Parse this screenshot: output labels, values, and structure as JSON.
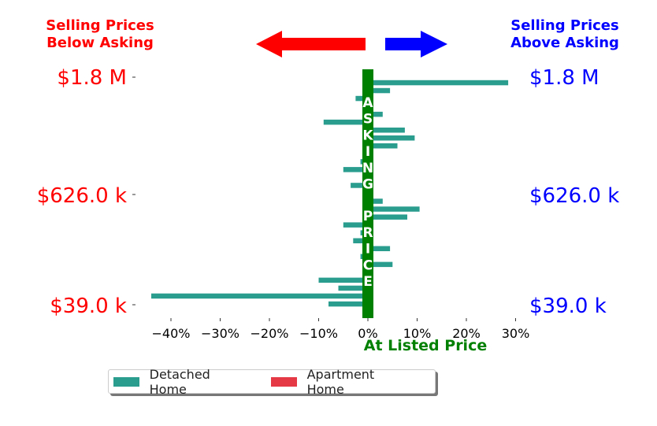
{
  "header": {
    "below_label_line1": "Selling Prices",
    "below_label_line2": "Below Asking",
    "above_label_line1": "Selling Prices",
    "above_label_line2": "Above Asking"
  },
  "colors": {
    "below": "#ff0000",
    "above": "#0000ff",
    "asking_bar": "#008000",
    "detached": "#2a9d8f",
    "apartment": "#e63946"
  },
  "asking_label": "ASKING PRICE",
  "listed_price_label": "At Listed Price",
  "legend": [
    {
      "name": "Detached Home",
      "color": "#2a9d8f"
    },
    {
      "name": "Apartment Home",
      "color": "#e63946"
    }
  ],
  "chart_data": {
    "type": "bar",
    "orientation": "horizontal",
    "xlabel": "At Listed Price",
    "x_ticks": [
      "−40%",
      "−30%",
      "−20%",
      "−10%",
      "0%",
      "10%",
      "20%",
      "30%"
    ],
    "x_tick_values": [
      -40,
      -30,
      -20,
      -10,
      0,
      10,
      20,
      30
    ],
    "xlim": [
      -45,
      31
    ],
    "y_ticks": [
      "$1.8 M",
      "$626.0 k",
      "$39.0 k"
    ],
    "series": [
      {
        "name": "Detached Home",
        "values": [
          28.5,
          4.5,
          -2.5,
          0,
          3.0,
          -9.0,
          7.5,
          9.5,
          6.0,
          0,
          -1.5,
          -5.0,
          0,
          -3.5,
          0,
          3.0,
          10.5,
          8.0,
          -5.0,
          -1.5,
          -3.0,
          4.5,
          -1.5,
          5.0,
          0,
          -10.0,
          -6.0,
          -44.0,
          -8.0
        ],
        "color": "#2a9d8f"
      },
      {
        "name": "Apartment Home",
        "values": [
          0,
          0,
          0,
          0,
          0,
          0,
          0,
          0,
          0,
          0,
          0,
          0,
          0,
          0,
          0,
          0,
          0,
          0,
          0,
          0,
          0,
          0,
          0,
          0,
          -1.0,
          0,
          0,
          0,
          0
        ],
        "color": "#e63946"
      }
    ],
    "grid": false
  }
}
